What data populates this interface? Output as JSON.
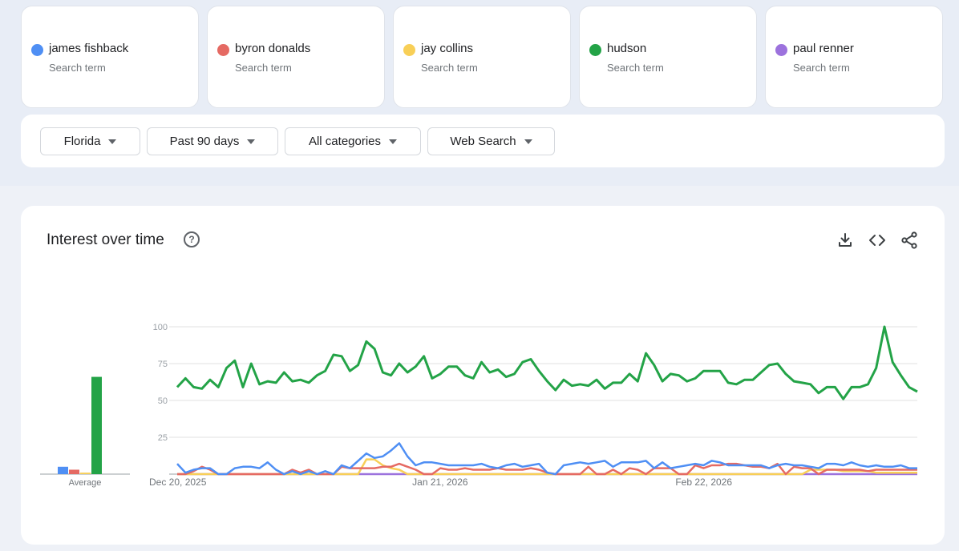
{
  "terms": [
    {
      "name": "james fishback",
      "sub": "Search term",
      "color": "#4f8ff4"
    },
    {
      "name": "byron donalds",
      "sub": "Search term",
      "color": "#e56a63"
    },
    {
      "name": "jay collins",
      "sub": "Search term",
      "color": "#f8cf57"
    },
    {
      "name": "hudson",
      "sub": "Search term",
      "color": "#23a347"
    },
    {
      "name": "paul renner",
      "sub": "Search term",
      "color": "#9c72dd"
    }
  ],
  "filters": {
    "region": "Florida",
    "time": "Past 90 days",
    "category": "All categories",
    "search_type": "Web Search"
  },
  "panel": {
    "title": "Interest over time",
    "help_icon": "help-circle-icon",
    "icons": [
      "download-icon",
      "embed-code-icon",
      "share-icon"
    ]
  },
  "chart_data": {
    "type": "line",
    "title": "Interest over time",
    "ylim": [
      0,
      100
    ],
    "y_ticks": [
      25,
      50,
      75,
      100
    ],
    "x_tick_labels": [
      {
        "index": 0,
        "label": "Dec 20, 2025"
      },
      {
        "index": 32,
        "label": "Jan 21, 2026"
      },
      {
        "index": 64,
        "label": "Feb 22, 2026"
      }
    ],
    "average_label": "Average",
    "averages": [
      {
        "name": "james fishback",
        "value": 5
      },
      {
        "name": "byron donalds",
        "value": 3
      },
      {
        "name": "jay collins",
        "value": 1
      },
      {
        "name": "hudson",
        "value": 66
      },
      {
        "name": "paul renner",
        "value": 0
      }
    ],
    "series": [
      {
        "name": "hudson",
        "color": "#23a347",
        "values": [
          59,
          65,
          59,
          58,
          64,
          59,
          72,
          77,
          59,
          75,
          61,
          63,
          62,
          69,
          63,
          64,
          62,
          67,
          70,
          81,
          80,
          70,
          74,
          90,
          85,
          69,
          67,
          75,
          69,
          73,
          80,
          65,
          68,
          73,
          73,
          67,
          65,
          76,
          69,
          71,
          66,
          68,
          76,
          78,
          70,
          63,
          57,
          64,
          60,
          61,
          60,
          64,
          58,
          62,
          62,
          68,
          63,
          82,
          74,
          63,
          68,
          67,
          63,
          65,
          70,
          70,
          70,
          62,
          61,
          64,
          64,
          69,
          74,
          75,
          68,
          63,
          62,
          61,
          55,
          59,
          59,
          51,
          59,
          59,
          61,
          72,
          100,
          76,
          67,
          59,
          56
        ]
      },
      {
        "name": "james fishback",
        "color": "#4f8ff4",
        "values": [
          7,
          1,
          3,
          4,
          4,
          0,
          0,
          4,
          5,
          5,
          4,
          8,
          3,
          0,
          2,
          0,
          2,
          0,
          2,
          0,
          6,
          4,
          9,
          14,
          11,
          12,
          16,
          21,
          12,
          6,
          8,
          8,
          7,
          6,
          6,
          6,
          6,
          7,
          5,
          4,
          6,
          7,
          5,
          6,
          7,
          1,
          0,
          6,
          7,
          8,
          7,
          8,
          9,
          5,
          8,
          8,
          8,
          9,
          4,
          8,
          4,
          5,
          6,
          7,
          6,
          9,
          8,
          6,
          6,
          6,
          6,
          6,
          4,
          6,
          7,
          6,
          6,
          5,
          4,
          7,
          7,
          6,
          8,
          6,
          5,
          6,
          5,
          5,
          6,
          4,
          4
        ]
      },
      {
        "name": "byron donalds",
        "color": "#e56a63",
        "values": [
          0,
          0,
          2,
          5,
          3,
          0,
          0,
          0,
          0,
          0,
          0,
          0,
          0,
          0,
          3,
          1,
          3,
          0,
          0,
          0,
          5,
          4,
          4,
          4,
          4,
          5,
          5,
          7,
          5,
          3,
          0,
          0,
          4,
          3,
          3,
          4,
          3,
          3,
          3,
          4,
          3,
          3,
          3,
          4,
          3,
          1,
          0,
          0,
          0,
          0,
          5,
          0,
          0,
          3,
          0,
          4,
          3,
          0,
          4,
          4,
          4,
          0,
          0,
          6,
          4,
          6,
          6,
          7,
          7,
          6,
          5,
          5,
          4,
          7,
          0,
          5,
          4,
          4,
          0,
          3,
          3,
          3,
          3,
          3,
          2,
          3,
          3,
          3,
          3,
          3,
          3
        ]
      },
      {
        "name": "jay collins",
        "color": "#f8cf57",
        "values": [
          0,
          0,
          0,
          0,
          0,
          0,
          0,
          0,
          0,
          0,
          0,
          0,
          0,
          0,
          0,
          0,
          0,
          0,
          0,
          0,
          0,
          0,
          0,
          10,
          10,
          6,
          4,
          3,
          0,
          0,
          0,
          0,
          0,
          0,
          0,
          0,
          0,
          0,
          0,
          0,
          0,
          0,
          0,
          0,
          0,
          0,
          0,
          0,
          0,
          0,
          0,
          0,
          0,
          0,
          0,
          0,
          0,
          0,
          0,
          0,
          0,
          0,
          0,
          0,
          0,
          0,
          0,
          0,
          0,
          0,
          0,
          0,
          0,
          0,
          0,
          0,
          0,
          3,
          3,
          3,
          3,
          2,
          2,
          2,
          2,
          1,
          1,
          1,
          1,
          1,
          1
        ]
      },
      {
        "name": "paul renner",
        "color": "#9c72dd",
        "values": [
          0,
          0,
          0,
          0,
          0,
          0,
          0,
          0,
          0,
          0,
          0,
          0,
          0,
          0,
          0,
          0,
          0,
          0,
          0,
          0,
          0,
          0,
          0,
          0,
          0,
          0,
          0,
          0,
          0,
          0,
          0,
          0,
          0,
          0,
          0,
          0,
          0,
          0,
          0,
          0,
          0,
          0,
          0,
          0,
          0,
          0,
          0,
          0,
          0,
          0,
          0,
          0,
          0,
          0,
          0,
          0,
          0,
          0,
          0,
          0,
          0,
          0,
          0,
          0,
          0,
          0,
          0,
          0,
          0,
          0,
          0,
          0,
          0,
          0,
          0,
          0,
          0,
          0,
          0,
          0,
          0,
          0,
          0,
          0,
          0,
          0,
          0,
          0,
          0,
          0,
          0
        ]
      }
    ]
  }
}
